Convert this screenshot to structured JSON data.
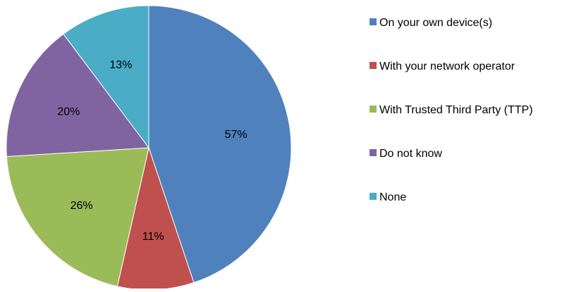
{
  "chart_data": {
    "type": "pie",
    "labels": [
      "On your own device(s)",
      "With your network operator",
      "With Trusted Third Party (TTP)",
      "Do not know",
      "None"
    ],
    "values": [
      57,
      11,
      26,
      20,
      13
    ],
    "value_labels": [
      "57%",
      "11%",
      "26%",
      "20%",
      "13%"
    ],
    "colors": [
      "#4F81BD",
      "#C0504D",
      "#9BBB59",
      "#8064A2",
      "#4BACC6"
    ],
    "title": "",
    "legend": "right",
    "start_angle": "12 o'clock",
    "direction": "clockwise"
  }
}
